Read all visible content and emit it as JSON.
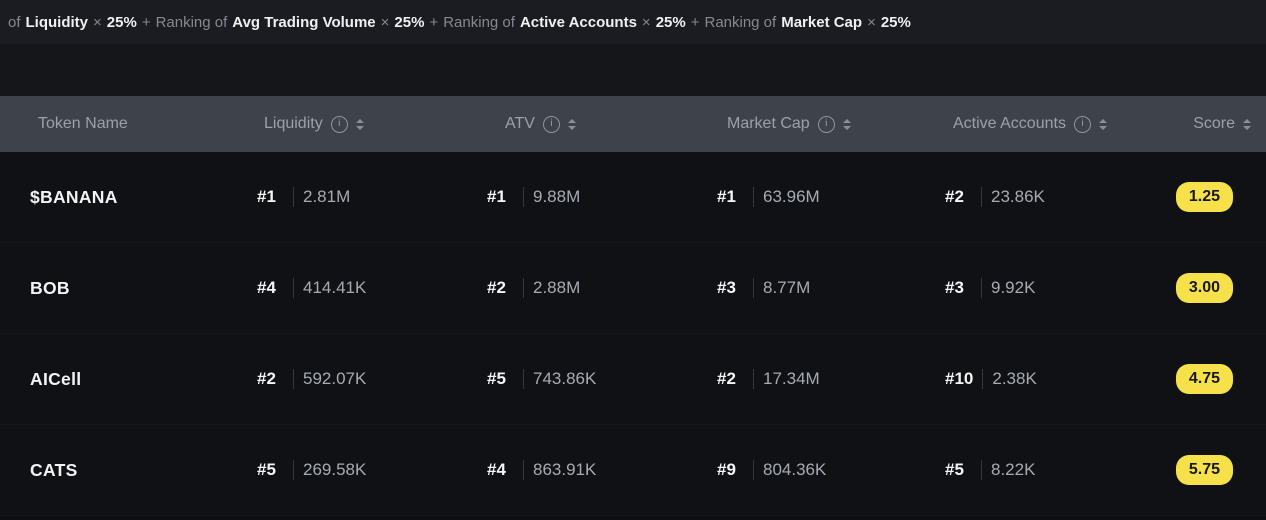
{
  "formula_bar": {
    "segments": [
      {
        "text": "of",
        "style": "muted"
      },
      {
        "text": "Liquidity",
        "style": "strong"
      },
      {
        "text": "×",
        "style": "muted"
      },
      {
        "text": "25%",
        "style": "strong"
      },
      {
        "text": "+",
        "style": "muted"
      },
      {
        "text": "Ranking of",
        "style": "muted"
      },
      {
        "text": "Avg Trading Volume",
        "style": "strong"
      },
      {
        "text": "×",
        "style": "muted"
      },
      {
        "text": "25%",
        "style": "strong"
      },
      {
        "text": "+",
        "style": "muted"
      },
      {
        "text": "Ranking of",
        "style": "muted"
      },
      {
        "text": "Active Accounts",
        "style": "strong"
      },
      {
        "text": "×",
        "style": "muted"
      },
      {
        "text": "25%",
        "style": "strong"
      },
      {
        "text": "+",
        "style": "muted"
      },
      {
        "text": "Ranking of",
        "style": "muted"
      },
      {
        "text": "Market Cap",
        "style": "strong"
      },
      {
        "text": "×",
        "style": "muted"
      },
      {
        "text": "25%",
        "style": "strong"
      }
    ]
  },
  "icons": {
    "info_glyph": "i"
  },
  "table": {
    "columns": [
      {
        "label": "Token Name",
        "key": "token",
        "info": false,
        "sort": false
      },
      {
        "label": "Liquidity",
        "key": "liquidity",
        "info": true,
        "sort": true
      },
      {
        "label": "ATV",
        "key": "atv",
        "info": true,
        "sort": true
      },
      {
        "label": "Market Cap",
        "key": "market_cap",
        "info": true,
        "sort": true
      },
      {
        "label": "Active Accounts",
        "key": "active_accounts",
        "info": true,
        "sort": true
      },
      {
        "label": "Score",
        "key": "score",
        "info": false,
        "sort": true
      }
    ],
    "rows": [
      {
        "token": "$BANANA",
        "liquidity": {
          "rank": "#1",
          "value": "2.81M"
        },
        "atv": {
          "rank": "#1",
          "value": "9.88M"
        },
        "market_cap": {
          "rank": "#1",
          "value": "63.96M"
        },
        "active_accounts": {
          "rank": "#2",
          "value": "23.86K"
        },
        "score": "1.25"
      },
      {
        "token": "BOB",
        "liquidity": {
          "rank": "#4",
          "value": "414.41K"
        },
        "atv": {
          "rank": "#2",
          "value": "2.88M"
        },
        "market_cap": {
          "rank": "#3",
          "value": "8.77M"
        },
        "active_accounts": {
          "rank": "#3",
          "value": "9.92K"
        },
        "score": "3.00"
      },
      {
        "token": "AICell",
        "liquidity": {
          "rank": "#2",
          "value": "592.07K"
        },
        "atv": {
          "rank": "#5",
          "value": "743.86K"
        },
        "market_cap": {
          "rank": "#2",
          "value": "17.34M"
        },
        "active_accounts": {
          "rank": "#10",
          "value": "2.38K"
        },
        "score": "4.75"
      },
      {
        "token": "CATS",
        "liquidity": {
          "rank": "#5",
          "value": "269.58K"
        },
        "atv": {
          "rank": "#4",
          "value": "863.91K"
        },
        "market_cap": {
          "rank": "#9",
          "value": "804.36K"
        },
        "active_accounts": {
          "rank": "#5",
          "value": "8.22K"
        },
        "score": "5.75"
      }
    ]
  },
  "colors": {
    "score_badge_bg": "#f7e14b",
    "score_badge_text": "#17181a",
    "header_bg": "#3e424b",
    "row_bg": "#101115",
    "accent_text": "#f2f3f5",
    "muted_text": "#84898f"
  }
}
